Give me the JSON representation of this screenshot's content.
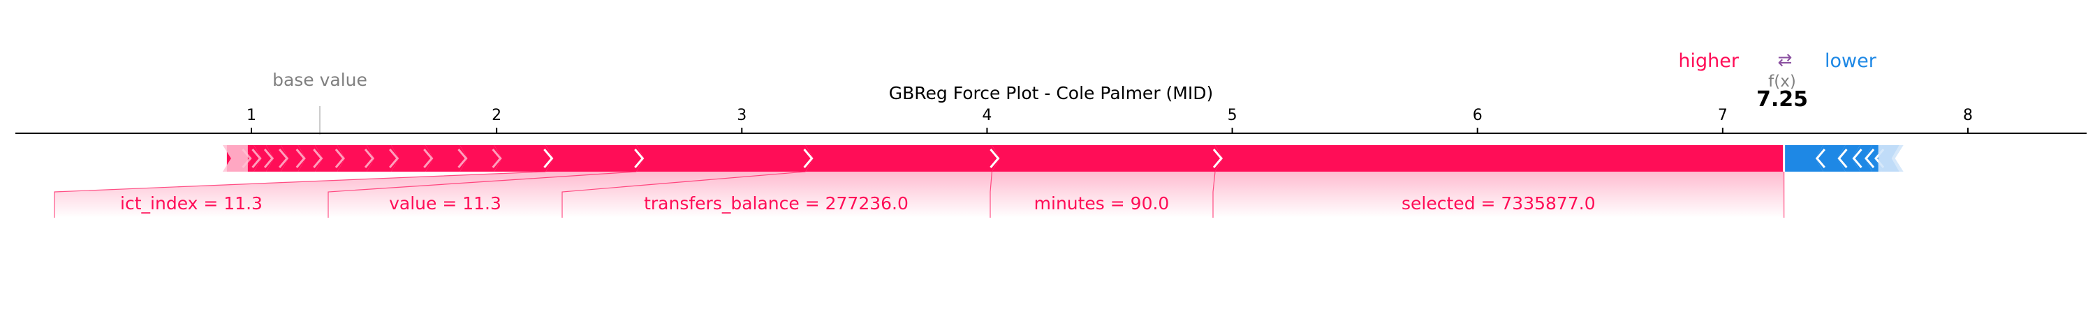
{
  "chart_data": {
    "type": "force",
    "title": "GBReg Force Plot - Cole Palmer (MID)",
    "base_value_label": "base value",
    "fx_label": "f(x)",
    "output_value": 7.25,
    "output_value_label": "7.25",
    "base_value": 1.28,
    "legend": {
      "higher": "higher",
      "lower": "lower",
      "arrows": "⇄"
    },
    "xlim": [
      0.1,
      8.55
    ],
    "ticks": [
      1,
      2,
      3,
      4,
      5,
      6,
      7,
      8
    ],
    "tick_labels": [
      "1",
      "2",
      "3",
      "4",
      "5",
      "6",
      "7",
      "8"
    ],
    "positive_features": [
      {
        "label": "selected = 7335877.0",
        "start": 4.93,
        "end": 7.25
      },
      {
        "label": "minutes = 90.0",
        "start": 4.02,
        "end": 4.93
      },
      {
        "label": "transfers_balance = 277236.0",
        "start": 3.26,
        "end": 4.02
      },
      {
        "label": "value = 11.3",
        "start": 2.57,
        "end": 3.26
      },
      {
        "label": "ict_index = 11.3",
        "start": 2.2,
        "end": 2.57
      },
      {
        "label": "",
        "start": 1.99,
        "end": 2.2
      },
      {
        "label": "",
        "start": 1.85,
        "end": 1.99
      },
      {
        "label": "",
        "start": 1.71,
        "end": 1.85
      },
      {
        "label": "",
        "start": 1.57,
        "end": 1.71
      },
      {
        "label": "",
        "start": 1.47,
        "end": 1.57
      },
      {
        "label": "",
        "start": 1.35,
        "end": 1.47
      },
      {
        "label": "",
        "start": 1.26,
        "end": 1.35
      },
      {
        "label": "",
        "start": 1.19,
        "end": 1.26
      },
      {
        "label": "",
        "start": 1.12,
        "end": 1.19
      },
      {
        "label": "",
        "start": 1.06,
        "end": 1.12
      },
      {
        "label": "",
        "start": 1.01,
        "end": 1.06
      },
      {
        "label": "",
        "start": 0.97,
        "end": 1.01
      },
      {
        "label": "",
        "start": 0.9,
        "end": 0.97
      }
    ],
    "negative_features": [
      {
        "label": "",
        "start": 7.25,
        "end": 7.41
      },
      {
        "label": "",
        "start": 7.41,
        "end": 7.5
      },
      {
        "label": "",
        "start": 7.5,
        "end": 7.56
      },
      {
        "label": "",
        "start": 7.56,
        "end": 7.61
      },
      {
        "label": "",
        "start": 7.61,
        "end": 7.65
      },
      {
        "label": "",
        "start": 7.65,
        "end": 7.72
      }
    ],
    "colors": {
      "positive": "#ff0d57",
      "negative": "#1e88e5",
      "positive_light": "#ffc3d5",
      "negative_light": "#d1e6fa",
      "axis": "#000000",
      "muted": "#808080"
    }
  }
}
